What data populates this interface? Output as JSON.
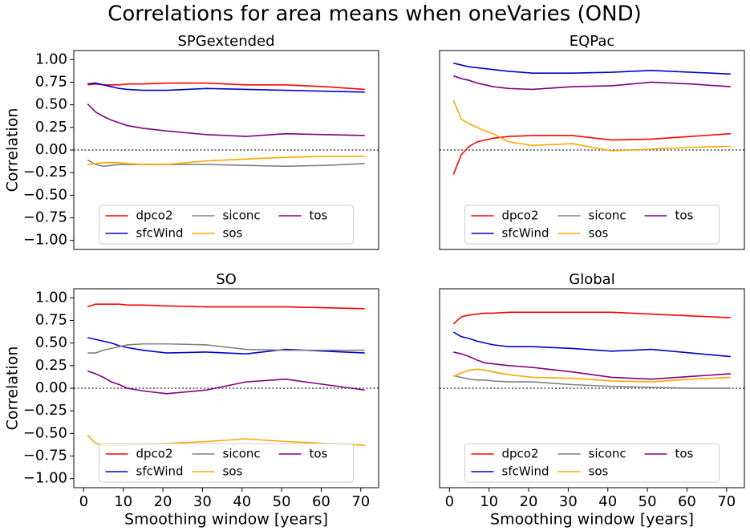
{
  "title": "Correlations for area means when oneVaries (OND)",
  "chart_data": [
    {
      "type": "line",
      "title": "SPGextended",
      "ylabel": "Correlation",
      "x": [
        1,
        3,
        5,
        7,
        9,
        11,
        15,
        21,
        31,
        41,
        51,
        61,
        71
      ],
      "series": [
        {
          "name": "dpco2",
          "color": "#ff0000",
          "values": [
            0.72,
            0.73,
            0.72,
            0.72,
            0.72,
            0.73,
            0.73,
            0.74,
            0.74,
            0.72,
            0.72,
            0.7,
            0.67
          ]
        },
        {
          "name": "sfcWind",
          "color": "#0000cd",
          "values": [
            0.73,
            0.74,
            0.72,
            0.7,
            0.68,
            0.67,
            0.66,
            0.66,
            0.68,
            0.67,
            0.66,
            0.65,
            0.64
          ]
        },
        {
          "name": "siconc",
          "color": "#808080",
          "values": [
            -0.11,
            -0.16,
            -0.18,
            -0.17,
            -0.16,
            -0.16,
            -0.16,
            -0.16,
            -0.16,
            -0.17,
            -0.18,
            -0.17,
            -0.15
          ]
        },
        {
          "name": "sos",
          "color": "#ffa500",
          "values": [
            -0.16,
            -0.15,
            -0.14,
            -0.14,
            -0.14,
            -0.15,
            -0.16,
            -0.16,
            -0.12,
            -0.1,
            -0.08,
            -0.07,
            -0.07
          ]
        },
        {
          "name": "tos",
          "color": "#800080",
          "values": [
            0.51,
            0.42,
            0.37,
            0.33,
            0.3,
            0.27,
            0.24,
            0.21,
            0.17,
            0.15,
            0.18,
            0.17,
            0.16
          ]
        }
      ],
      "xlim": [
        -2.5,
        74.5
      ],
      "ylim": [
        -1.1,
        1.1
      ],
      "yticks": [
        {
          "value": -1,
          "label": "−1.00"
        },
        {
          "value": -0.75,
          "label": "−0.75"
        },
        {
          "value": -0.5,
          "label": "−0.50"
        },
        {
          "value": -0.25,
          "label": "−0.25"
        },
        {
          "value": 0,
          "label": "0.00"
        },
        {
          "value": 0.25,
          "label": "0.25"
        },
        {
          "value": 0.5,
          "label": "0.50"
        },
        {
          "value": 0.75,
          "label": "0.75"
        },
        {
          "value": 1,
          "label": "1.00"
        }
      ],
      "hline": 0,
      "legend": "lower center",
      "legend_columns": 3
    },
    {
      "type": "line",
      "title": "EQPac",
      "x": [
        1,
        3,
        5,
        7,
        9,
        11,
        15,
        21,
        31,
        41,
        51,
        61,
        71
      ],
      "series": [
        {
          "name": "dpco2",
          "color": "#ff0000",
          "values": [
            -0.27,
            -0.05,
            0.04,
            0.09,
            0.11,
            0.13,
            0.15,
            0.16,
            0.16,
            0.11,
            0.12,
            0.15,
            0.18
          ]
        },
        {
          "name": "sfcWind",
          "color": "#0000cd",
          "values": [
            0.96,
            0.94,
            0.92,
            0.91,
            0.9,
            0.89,
            0.87,
            0.85,
            0.85,
            0.86,
            0.88,
            0.86,
            0.84
          ]
        },
        {
          "name": "siconc",
          "color": "#808080",
          "values": [
            null,
            null,
            null,
            null,
            null,
            null,
            null,
            null,
            null,
            null,
            null,
            null,
            null
          ]
        },
        {
          "name": "sos",
          "color": "#ffa500",
          "values": [
            0.55,
            0.34,
            0.29,
            0.25,
            0.21,
            0.18,
            0.09,
            0.05,
            0.07,
            -0.01,
            0.01,
            0.03,
            0.04
          ]
        },
        {
          "name": "tos",
          "color": "#800080",
          "values": [
            0.82,
            0.79,
            0.77,
            0.74,
            0.72,
            0.7,
            0.68,
            0.67,
            0.7,
            0.71,
            0.75,
            0.73,
            0.7
          ]
        }
      ],
      "xlim": [
        -2.5,
        74.5
      ],
      "ylim": [
        -1.1,
        1.1
      ],
      "hline": 0,
      "legend": "lower center",
      "legend_columns": 3
    },
    {
      "type": "line",
      "title": "SO",
      "ylabel": "Correlation",
      "xlabel": "Smoothing window [years]",
      "x": [
        1,
        3,
        5,
        7,
        9,
        11,
        15,
        21,
        31,
        41,
        51,
        61,
        71
      ],
      "series": [
        {
          "name": "dpco2",
          "color": "#ff0000",
          "values": [
            0.9,
            0.93,
            0.93,
            0.93,
            0.93,
            0.92,
            0.92,
            0.91,
            0.9,
            0.9,
            0.9,
            0.89,
            0.88
          ]
        },
        {
          "name": "sfcWind",
          "color": "#0000cd",
          "values": [
            0.56,
            0.54,
            0.52,
            0.5,
            0.47,
            0.45,
            0.42,
            0.39,
            0.4,
            0.38,
            0.43,
            0.41,
            0.39
          ]
        },
        {
          "name": "siconc",
          "color": "#808080",
          "values": [
            0.39,
            0.39,
            0.42,
            0.44,
            0.46,
            0.48,
            0.49,
            0.49,
            0.48,
            0.43,
            0.42,
            0.42,
            0.42
          ]
        },
        {
          "name": "sos",
          "color": "#ffa500",
          "values": [
            -0.52,
            -0.61,
            -0.63,
            -0.63,
            -0.63,
            -0.63,
            -0.62,
            -0.61,
            -0.59,
            -0.56,
            -0.59,
            -0.61,
            -0.63
          ]
        },
        {
          "name": "tos",
          "color": "#800080",
          "values": [
            0.19,
            0.16,
            0.12,
            0.07,
            0.04,
            0.0,
            -0.03,
            -0.06,
            -0.02,
            0.07,
            0.1,
            0.04,
            -0.02
          ]
        }
      ],
      "xlim": [
        -2.5,
        74.5
      ],
      "ylim": [
        -1.1,
        1.1
      ],
      "xticks": [
        0,
        10,
        20,
        30,
        40,
        50,
        60,
        70
      ],
      "yticks": [
        {
          "value": -1,
          "label": "−1.00"
        },
        {
          "value": -0.75,
          "label": "−0.75"
        },
        {
          "value": -0.5,
          "label": "−0.50"
        },
        {
          "value": -0.25,
          "label": "−0.25"
        },
        {
          "value": 0,
          "label": "0.00"
        },
        {
          "value": 0.25,
          "label": "0.25"
        },
        {
          "value": 0.5,
          "label": "0.50"
        },
        {
          "value": 0.75,
          "label": "0.75"
        },
        {
          "value": 1,
          "label": "1.00"
        }
      ],
      "hline": 0,
      "legend": "lower center",
      "legend_columns": 3
    },
    {
      "type": "line",
      "title": "Global",
      "xlabel": "Smoothing window [years]",
      "x": [
        1,
        3,
        5,
        7,
        9,
        11,
        15,
        21,
        31,
        41,
        51,
        61,
        71
      ],
      "series": [
        {
          "name": "dpco2",
          "color": "#ff0000",
          "values": [
            0.71,
            0.79,
            0.81,
            0.82,
            0.83,
            0.83,
            0.84,
            0.84,
            0.84,
            0.84,
            0.82,
            0.8,
            0.78
          ]
        },
        {
          "name": "sfcWind",
          "color": "#0000cd",
          "values": [
            0.62,
            0.57,
            0.55,
            0.52,
            0.5,
            0.48,
            0.46,
            0.46,
            0.44,
            0.41,
            0.43,
            0.39,
            0.35
          ]
        },
        {
          "name": "siconc",
          "color": "#808080",
          "values": [
            0.14,
            0.12,
            0.1,
            0.09,
            0.09,
            0.08,
            0.07,
            0.07,
            0.04,
            0.02,
            0.01,
            0.0,
            0.0
          ]
        },
        {
          "name": "sos",
          "color": "#ffa500",
          "values": [
            0.13,
            0.17,
            0.2,
            0.21,
            0.2,
            0.18,
            0.15,
            0.12,
            0.11,
            0.08,
            0.07,
            0.1,
            0.12
          ]
        },
        {
          "name": "tos",
          "color": "#800080",
          "values": [
            0.4,
            0.38,
            0.35,
            0.31,
            0.28,
            0.27,
            0.25,
            0.23,
            0.18,
            0.12,
            0.1,
            0.13,
            0.16
          ]
        }
      ],
      "xlim": [
        -2.5,
        74.5
      ],
      "ylim": [
        -1.1,
        1.1
      ],
      "xticks": [
        0,
        10,
        20,
        30,
        40,
        50,
        60,
        70
      ],
      "hline": 0,
      "legend": "lower center",
      "legend_columns": 3
    }
  ]
}
